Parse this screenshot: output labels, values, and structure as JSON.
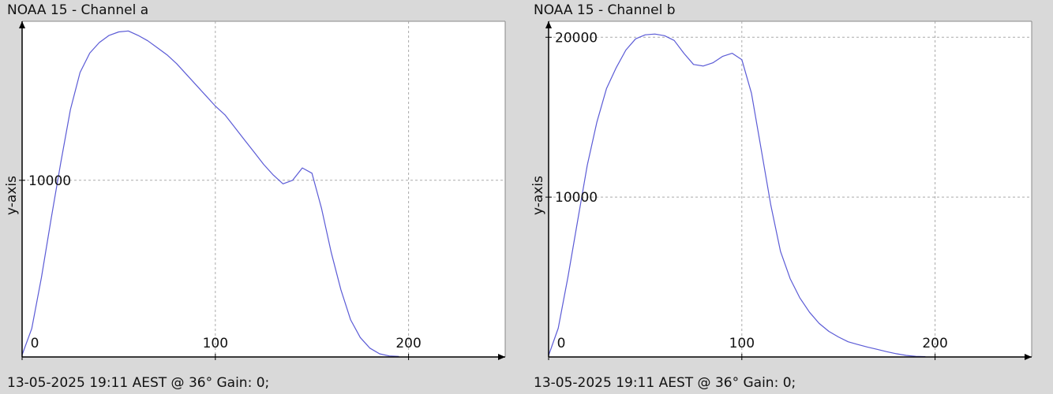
{
  "colors": {
    "line": "#5b5bd6",
    "background": "#d9d9d9",
    "plot_bg": "#ffffff",
    "grid": "#aaaaaa"
  },
  "chart_data": [
    {
      "type": "line",
      "title": "NOAA 15 - Channel a",
      "footer": "13-05-2025 19:11 AEST @ 36° Gain: 0;",
      "xlabel": "",
      "ylabel": "y-axis",
      "xlim": [
        0,
        250
      ],
      "ylim": [
        0,
        19000
      ],
      "x_ticks": [
        0,
        100,
        200
      ],
      "y_ticks": [
        10000
      ],
      "grid": true,
      "series": [
        {
          "x": [
            0,
            5,
            10,
            15,
            20,
            25,
            30,
            35,
            40,
            45,
            50,
            55,
            60,
            65,
            70,
            75,
            80,
            85,
            90,
            95,
            100,
            105,
            110,
            115,
            120,
            125,
            130,
            135,
            140,
            145,
            150,
            155,
            160,
            165,
            170,
            175,
            180,
            185,
            190,
            195
          ],
          "values": [
            120,
            1600,
            4500,
            7800,
            11000,
            14000,
            16100,
            17200,
            17800,
            18200,
            18400,
            18450,
            18200,
            17900,
            17500,
            17100,
            16600,
            16000,
            15400,
            14800,
            14200,
            13700,
            13000,
            12300,
            11600,
            10900,
            10300,
            9800,
            10000,
            10700,
            10400,
            8400,
            5900,
            3800,
            2100,
            1100,
            500,
            180,
            60,
            30
          ]
        }
      ]
    },
    {
      "type": "line",
      "title": "NOAA 15 - Channel b",
      "footer": "13-05-2025 19:11 AEST @ 36° Gain: 0;",
      "xlabel": "",
      "ylabel": "y-axis",
      "xlim": [
        0,
        250
      ],
      "ylim": [
        0,
        21000
      ],
      "x_ticks": [
        0,
        100,
        200
      ],
      "y_ticks": [
        10000,
        20000
      ],
      "grid": true,
      "series": [
        {
          "x": [
            0,
            5,
            10,
            15,
            20,
            25,
            30,
            35,
            40,
            45,
            50,
            55,
            60,
            65,
            70,
            75,
            80,
            85,
            90,
            95,
            100,
            105,
            110,
            115,
            120,
            125,
            130,
            135,
            140,
            145,
            150,
            155,
            160,
            165,
            170,
            175,
            180,
            185,
            190,
            195
          ],
          "values": [
            100,
            1800,
            5000,
            8500,
            12000,
            14700,
            16800,
            18100,
            19200,
            19900,
            20150,
            20200,
            20100,
            19800,
            19000,
            18300,
            18200,
            18400,
            18800,
            19000,
            18600,
            16500,
            13000,
            9500,
            6600,
            4900,
            3700,
            2800,
            2100,
            1600,
            1250,
            950,
            780,
            620,
            480,
            330,
            200,
            100,
            40,
            20
          ]
        }
      ]
    }
  ]
}
